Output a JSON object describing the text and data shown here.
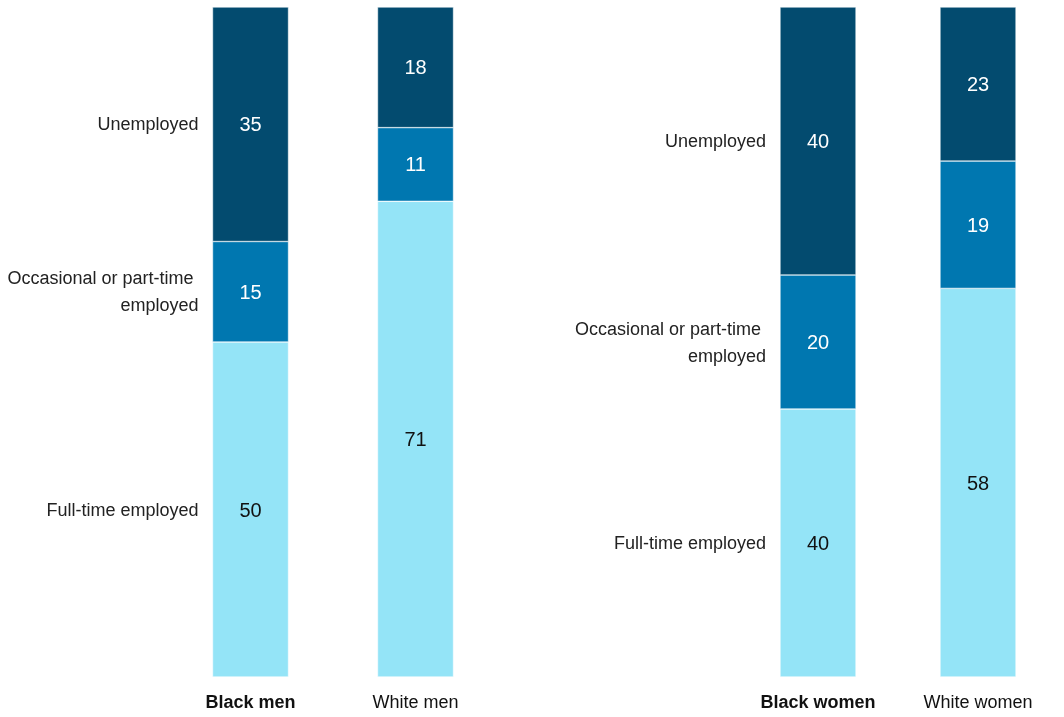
{
  "chart_data": [
    {
      "type": "bar",
      "stacked": true,
      "data_labels": true,
      "legend": "left",
      "tick_labels": "x",
      "ylim": [
        0,
        100
      ],
      "categories": [
        "Black men",
        "White men"
      ],
      "series": [
        {
          "name": "Full-time employed",
          "color": "#94e4f7",
          "values": [
            50,
            71
          ]
        },
        {
          "name": "Occasional or part-time employed",
          "color": "#0077b0",
          "values": [
            15,
            11
          ]
        },
        {
          "name": "Unemployed",
          "color": "#034b6f",
          "values": [
            35,
            18
          ]
        }
      ]
    },
    {
      "type": "bar",
      "stacked": true,
      "data_labels": true,
      "legend": "left",
      "tick_labels": "x",
      "ylim": [
        0,
        100
      ],
      "categories": [
        "Black women",
        "White women"
      ],
      "series": [
        {
          "name": "Full-time employed",
          "color": "#94e4f7",
          "values": [
            40,
            58
          ]
        },
        {
          "name": "Occasional or part-time employed",
          "color": "#0077b0",
          "values": [
            20,
            19
          ]
        },
        {
          "name": "Unemployed",
          "color": "#034b6f",
          "values": [
            40,
            23
          ]
        }
      ]
    }
  ]
}
